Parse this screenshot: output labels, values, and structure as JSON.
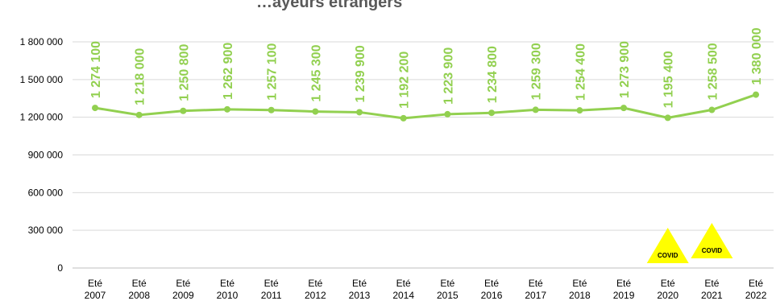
{
  "chart_data": {
    "type": "line",
    "title": "…ayeurs étrangers",
    "categories": [
      "Eté 2007",
      "Eté 2008",
      "Eté 2009",
      "Eté 2010",
      "Eté 2011",
      "Eté 2012",
      "Eté 2013",
      "Eté 2014",
      "Eté 2015",
      "Eté 2016",
      "Eté 2017",
      "Eté 2018",
      "Eté 2019",
      "Eté 2020",
      "Eté 2021",
      "Eté 2022"
    ],
    "values": [
      1274100,
      1218000,
      1250800,
      1262900,
      1257100,
      1245300,
      1239900,
      1192200,
      1223900,
      1234800,
      1259300,
      1254400,
      1273900,
      1195400,
      1258500,
      1380000
    ],
    "value_labels": [
      "1 274 100",
      "1 218 000",
      "1 250 800",
      "1 262 900",
      "1 257 100",
      "1 245 300",
      "1 239 900",
      "1 192 200",
      "1 223 900",
      "1 234 800",
      "1 259 300",
      "1 254 400",
      "1 273 900",
      "1 195 400",
      "1 258 500",
      "1 380 000"
    ],
    "yticks": [
      0,
      300000,
      600000,
      900000,
      1200000,
      1500000,
      1800000
    ],
    "ytick_labels": [
      "0",
      "300 000",
      "600 000",
      "900 000",
      "1 200 000",
      "1 500 000",
      "1 800 000"
    ],
    "ylim": [
      0,
      1800000
    ],
    "grid": true,
    "line_color": "#92d050",
    "annotations": [
      {
        "text": "COVID",
        "category": "Eté 2020",
        "shape": "triangle",
        "color": "#ffff00"
      },
      {
        "text": "COVID",
        "category": "Eté 2021",
        "shape": "triangle",
        "color": "#ffff00"
      }
    ]
  }
}
